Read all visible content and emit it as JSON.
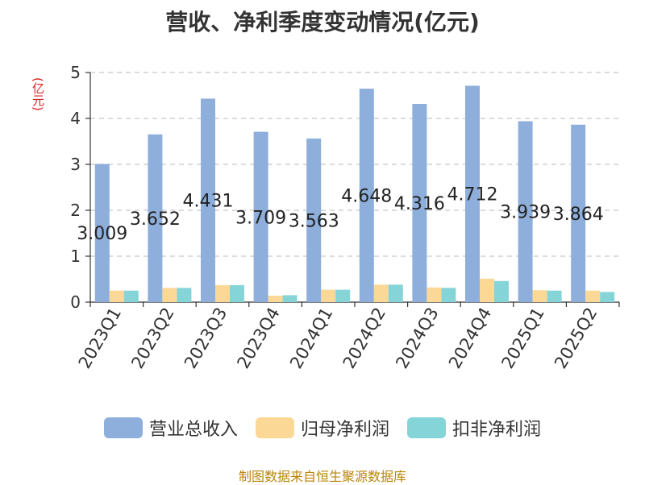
{
  "chart_data": {
    "type": "bar",
    "title": "营收、净利季度变动情况(亿元)",
    "ylabel": "(亿元)",
    "ylim": [
      0,
      5
    ],
    "yticks": [
      "0",
      "1",
      "2",
      "3",
      "4",
      "5"
    ],
    "grid": true,
    "legend_position": "bottom",
    "categories": [
      "2023Q1",
      "2023Q2",
      "2023Q3",
      "2023Q4",
      "2024Q1",
      "2024Q2",
      "2024Q3",
      "2024Q4",
      "2025Q1",
      "2025Q2"
    ],
    "series": [
      {
        "name": "营业总收入",
        "color": "#8eaedb",
        "values": [
          3.009,
          3.652,
          4.431,
          3.709,
          3.563,
          4.648,
          4.316,
          4.712,
          3.939,
          3.864
        ],
        "labels": [
          "3.009",
          "3.652",
          "4.431",
          "3.709",
          "3.563",
          "4.648",
          "4.316",
          "4.712",
          "3.939",
          "3.864"
        ]
      },
      {
        "name": "归母净利润",
        "color": "#fcd897",
        "values": [
          0.25,
          0.31,
          0.37,
          0.14,
          0.27,
          0.38,
          0.32,
          0.51,
          0.26,
          0.25
        ]
      },
      {
        "name": "扣非净利润",
        "color": "#85d4d7",
        "values": [
          0.25,
          0.31,
          0.37,
          0.15,
          0.27,
          0.38,
          0.31,
          0.46,
          0.25,
          0.22
        ]
      }
    ]
  },
  "source_note": "制图数据来自恒生聚源数据库"
}
